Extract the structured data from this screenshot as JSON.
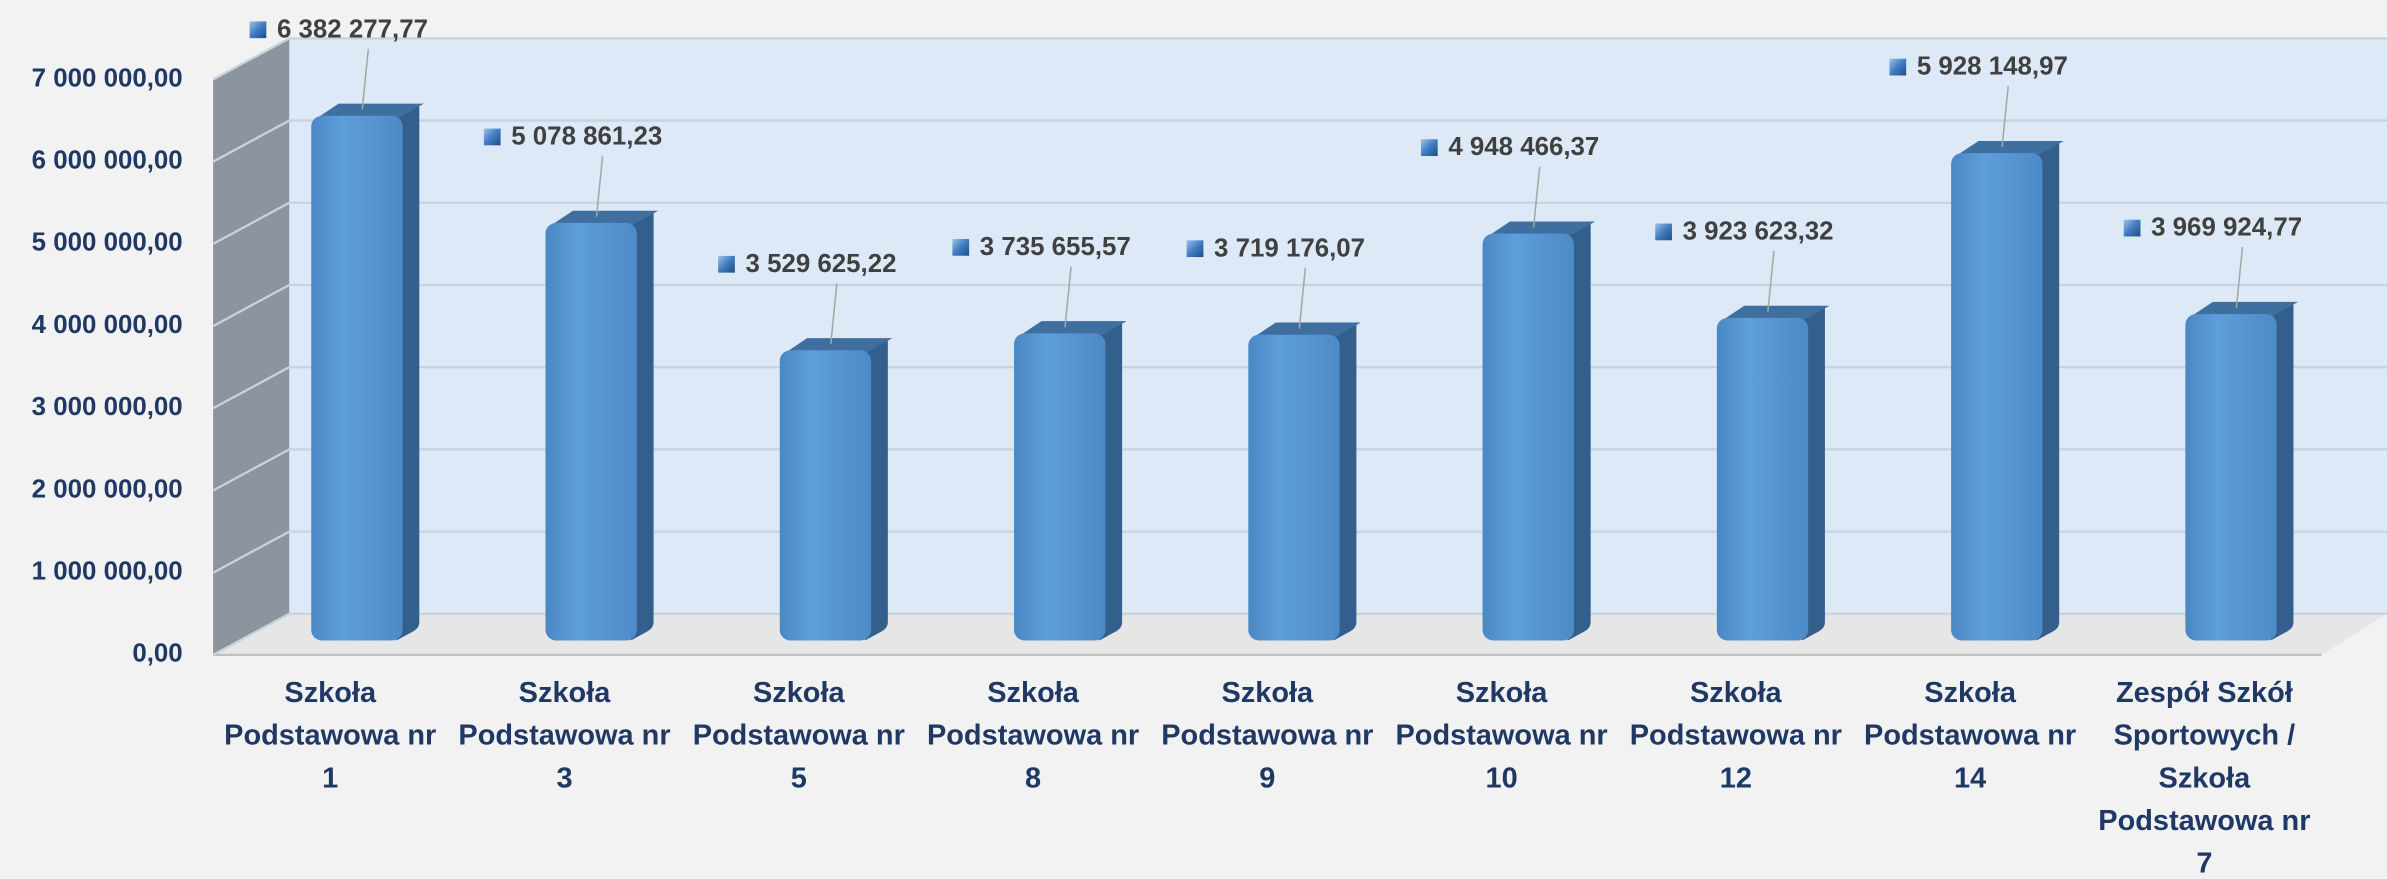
{
  "chart_data": {
    "type": "bar",
    "categories": [
      "Szkoła Podstawowa nr 1",
      "Szkoła Podstawowa nr 3",
      "Szkoła Podstawowa nr 5",
      "Szkoła Podstawowa nr 8",
      "Szkoła Podstawowa nr 9",
      "Szkoła Podstawowa nr 10",
      "Szkoła Podstawowa nr 12",
      "Szkoła Podstawowa nr 14",
      "Zespół Szkół Sportowych / Szkoła Podstawowa nr 7"
    ],
    "values": [
      6382277.77,
      5078861.23,
      3529625.22,
      3735655.57,
      3719176.07,
      4948466.37,
      3923623.32,
      5928148.97,
      3969924.77
    ],
    "value_labels": [
      "6 382 277,77",
      "5 078 861,23",
      "3 529 625,22",
      "3 735 655,57",
      "3 719 176,07",
      "4 948 466,37",
      "3 923 623,32",
      "5 928 148,97",
      "3 969 924,77"
    ],
    "color": "#5b9bd5",
    "ylim": [
      0,
      7000000
    ],
    "yticks": [
      {
        "value": 0,
        "label": "0,00"
      },
      {
        "value": 1000000,
        "label": "1 000 000,00"
      },
      {
        "value": 2000000,
        "label": "2 000 000,00"
      },
      {
        "value": 3000000,
        "label": "3 000 000,00"
      },
      {
        "value": 4000000,
        "label": "4 000 000,00"
      },
      {
        "value": 5000000,
        "label": "5 000 000,00"
      },
      {
        "value": 6000000,
        "label": "6 000 000,00"
      },
      {
        "value": 7000000,
        "label": "7 000 000,00"
      }
    ],
    "grid": true
  }
}
